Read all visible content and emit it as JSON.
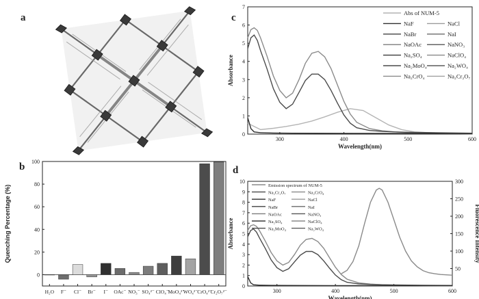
{
  "panels": {
    "a": "a",
    "b": "b",
    "c": "c",
    "d": "d"
  },
  "chart_data": [
    {
      "panel": "b",
      "type": "bar",
      "xlabel": "",
      "ylabel": "Quenching Percentage (%)",
      "ylim": [
        -10,
        100
      ],
      "yticks": [
        0,
        20,
        40,
        60,
        80,
        100
      ],
      "grid": false,
      "categories": [
        "H₂O",
        "F⁻",
        "Cl⁻",
        "Br⁻",
        "I⁻",
        "OAc⁻",
        "NO₃⁻",
        "SO₄²⁻",
        "ClO₄⁻",
        "MoO₄²⁻",
        "WO₄²⁻",
        "CrO₄²⁻",
        "Cr₂O₇²⁻"
      ],
      "values": [
        0,
        -4,
        9,
        -2,
        10,
        5.5,
        2,
        7.5,
        10,
        16.5,
        14,
        98,
        99.5
      ],
      "colors": [
        "#7a7a7a",
        "#6e6e6e",
        "#dcdcdc",
        "#9a9a9a",
        "#303030",
        "#6c6c6c",
        "#8a8a8a",
        "#7c7c7c",
        "#5e5e5e",
        "#3e3e3e",
        "#a4a4a4",
        "#4c4c4c",
        "#7e7e7e"
      ]
    },
    {
      "panel": "c",
      "type": "line",
      "xlabel": "Wavelength(nm)",
      "ylabel": "Absorbance",
      "xlim": [
        250,
        600
      ],
      "ylim": [
        0,
        7
      ],
      "xticks": [
        300,
        400,
        500,
        600
      ],
      "yticks": [
        0,
        1,
        2,
        3,
        4,
        5,
        6,
        7
      ],
      "legend_position": "top-right",
      "legend": [
        "Abs of NUM-5",
        "NaF",
        "NaCl",
        "NaBr",
        "NaI",
        "NaOAc",
        "NaNO₃",
        "Na₂SO₄",
        "NaClO₄",
        "Na₂MoO₄",
        "Na₂WO₄",
        "Na₂CrO₄",
        "Na₂Cr₂O₇"
      ],
      "series": [
        {
          "name": "Abs of NUM-5",
          "color": "#b4b4b4",
          "x": [
            250,
            270,
            290,
            310,
            330,
            350,
            370,
            390,
            410,
            430,
            450,
            470,
            490,
            510,
            550,
            600
          ],
          "y": [
            0.6,
            0.25,
            0.32,
            0.42,
            0.55,
            0.72,
            0.95,
            1.2,
            1.4,
            1.3,
            0.9,
            0.5,
            0.25,
            0.12,
            0.05,
            0.03
          ]
        },
        {
          "name": "Na₂CrO₄",
          "color": "#8a8a8a",
          "x": [
            250,
            255,
            260,
            265,
            270,
            280,
            290,
            300,
            310,
            320,
            330,
            340,
            350,
            360,
            370,
            380,
            390,
            400,
            410,
            420,
            440,
            460,
            480,
            500,
            550,
            600
          ],
          "y": [
            5.3,
            5.75,
            5.85,
            5.7,
            5.3,
            4.3,
            3.2,
            2.4,
            2.0,
            2.25,
            3.0,
            3.9,
            4.45,
            4.55,
            4.25,
            3.6,
            2.7,
            1.8,
            1.1,
            0.65,
            0.3,
            0.18,
            0.12,
            0.08,
            0.04,
            0.02
          ]
        },
        {
          "name": "Na₂Cr₂O₇",
          "color": "#4a4a4a",
          "x": [
            250,
            255,
            260,
            265,
            270,
            280,
            290,
            300,
            310,
            320,
            330,
            340,
            350,
            360,
            370,
            380,
            390,
            400,
            410,
            420,
            440,
            460,
            480,
            500,
            550,
            600
          ],
          "y": [
            4.7,
            5.3,
            5.45,
            5.15,
            4.6,
            3.6,
            2.5,
            1.75,
            1.4,
            1.65,
            2.3,
            2.95,
            3.3,
            3.3,
            3.0,
            2.4,
            1.7,
            1.05,
            0.6,
            0.35,
            0.2,
            0.15,
            0.12,
            0.1,
            0.07,
            0.05
          ]
        },
        {
          "name": "NaF",
          "color": "#2e2e2e",
          "x": [
            250,
            255,
            260,
            270,
            290,
            320,
            400,
            600
          ],
          "y": [
            0.9,
            0.3,
            0.12,
            0.08,
            0.06,
            0.05,
            0.04,
            0.03
          ]
        }
      ]
    },
    {
      "panel": "d",
      "type": "line",
      "xlabel": "Wavelength(nm)",
      "ylabel": "Absorbance",
      "y2label": "Fluorescence Intensity",
      "xlim": [
        250,
        600
      ],
      "ylim": [
        0,
        10
      ],
      "y2lim": [
        0,
        300
      ],
      "xticks": [
        300,
        400,
        500,
        600
      ],
      "yticks": [
        0,
        1,
        2,
        3,
        4,
        5,
        6,
        7,
        8,
        9,
        10
      ],
      "y2ticks": [
        50,
        100,
        150,
        200,
        250,
        300
      ],
      "legend_position": "top-left",
      "legend": [
        "Emission spectrum of NUM-5",
        "Na₂Cr₂O₇",
        "Na₂CrO₄",
        "NaF",
        "NaCl",
        "NaBr",
        "NaI",
        "NaOAc",
        "NaNO₃",
        "Na₂SO₄",
        "NaClO₄",
        "Na₂MoO₄",
        "Na₂WO₄"
      ],
      "series": [
        {
          "name": "Emission spectrum of NUM-5",
          "axis": "right",
          "color": "#8a8a8a",
          "x": [
            410,
            420,
            430,
            440,
            450,
            460,
            470,
            475,
            480,
            490,
            500,
            510,
            520,
            530,
            540,
            550,
            560,
            570,
            580,
            590,
            600
          ],
          "y": [
            35,
            45,
            70,
            115,
            180,
            240,
            275,
            280,
            275,
            240,
            190,
            140,
            100,
            72,
            55,
            44,
            38,
            35,
            33,
            32,
            31
          ]
        },
        {
          "name": "Na₂CrO₄",
          "color": "#8a8a8a",
          "x": [
            250,
            255,
            260,
            265,
            270,
            280,
            290,
            300,
            310,
            320,
            330,
            340,
            350,
            360,
            370,
            380,
            390,
            400,
            410,
            420,
            440,
            460,
            480,
            500,
            550,
            600
          ],
          "y": [
            5.3,
            5.75,
            5.85,
            5.7,
            5.3,
            4.3,
            3.2,
            2.4,
            2.0,
            2.25,
            3.0,
            3.9,
            4.45,
            4.55,
            4.25,
            3.6,
            2.7,
            1.8,
            1.1,
            0.65,
            0.3,
            0.18,
            0.12,
            0.08,
            0.04,
            0.02
          ]
        },
        {
          "name": "Na₂Cr₂O₇",
          "color": "#4a4a4a",
          "x": [
            250,
            255,
            260,
            265,
            270,
            280,
            290,
            300,
            310,
            320,
            330,
            340,
            350,
            360,
            370,
            380,
            390,
            400,
            410,
            420,
            440,
            460,
            480,
            500,
            550,
            600
          ],
          "y": [
            4.7,
            5.3,
            5.45,
            5.15,
            4.6,
            3.6,
            2.5,
            1.75,
            1.4,
            1.65,
            2.3,
            2.95,
            3.3,
            3.3,
            3.0,
            2.4,
            1.7,
            1.05,
            0.6,
            0.35,
            0.2,
            0.15,
            0.12,
            0.1,
            0.07,
            0.05
          ]
        },
        {
          "name": "NaF",
          "color": "#2e2e2e",
          "x": [
            250,
            255,
            260,
            270,
            290,
            320,
            400,
            600
          ],
          "y": [
            0.9,
            0.3,
            0.12,
            0.08,
            0.06,
            0.05,
            0.04,
            0.03
          ]
        }
      ]
    }
  ]
}
